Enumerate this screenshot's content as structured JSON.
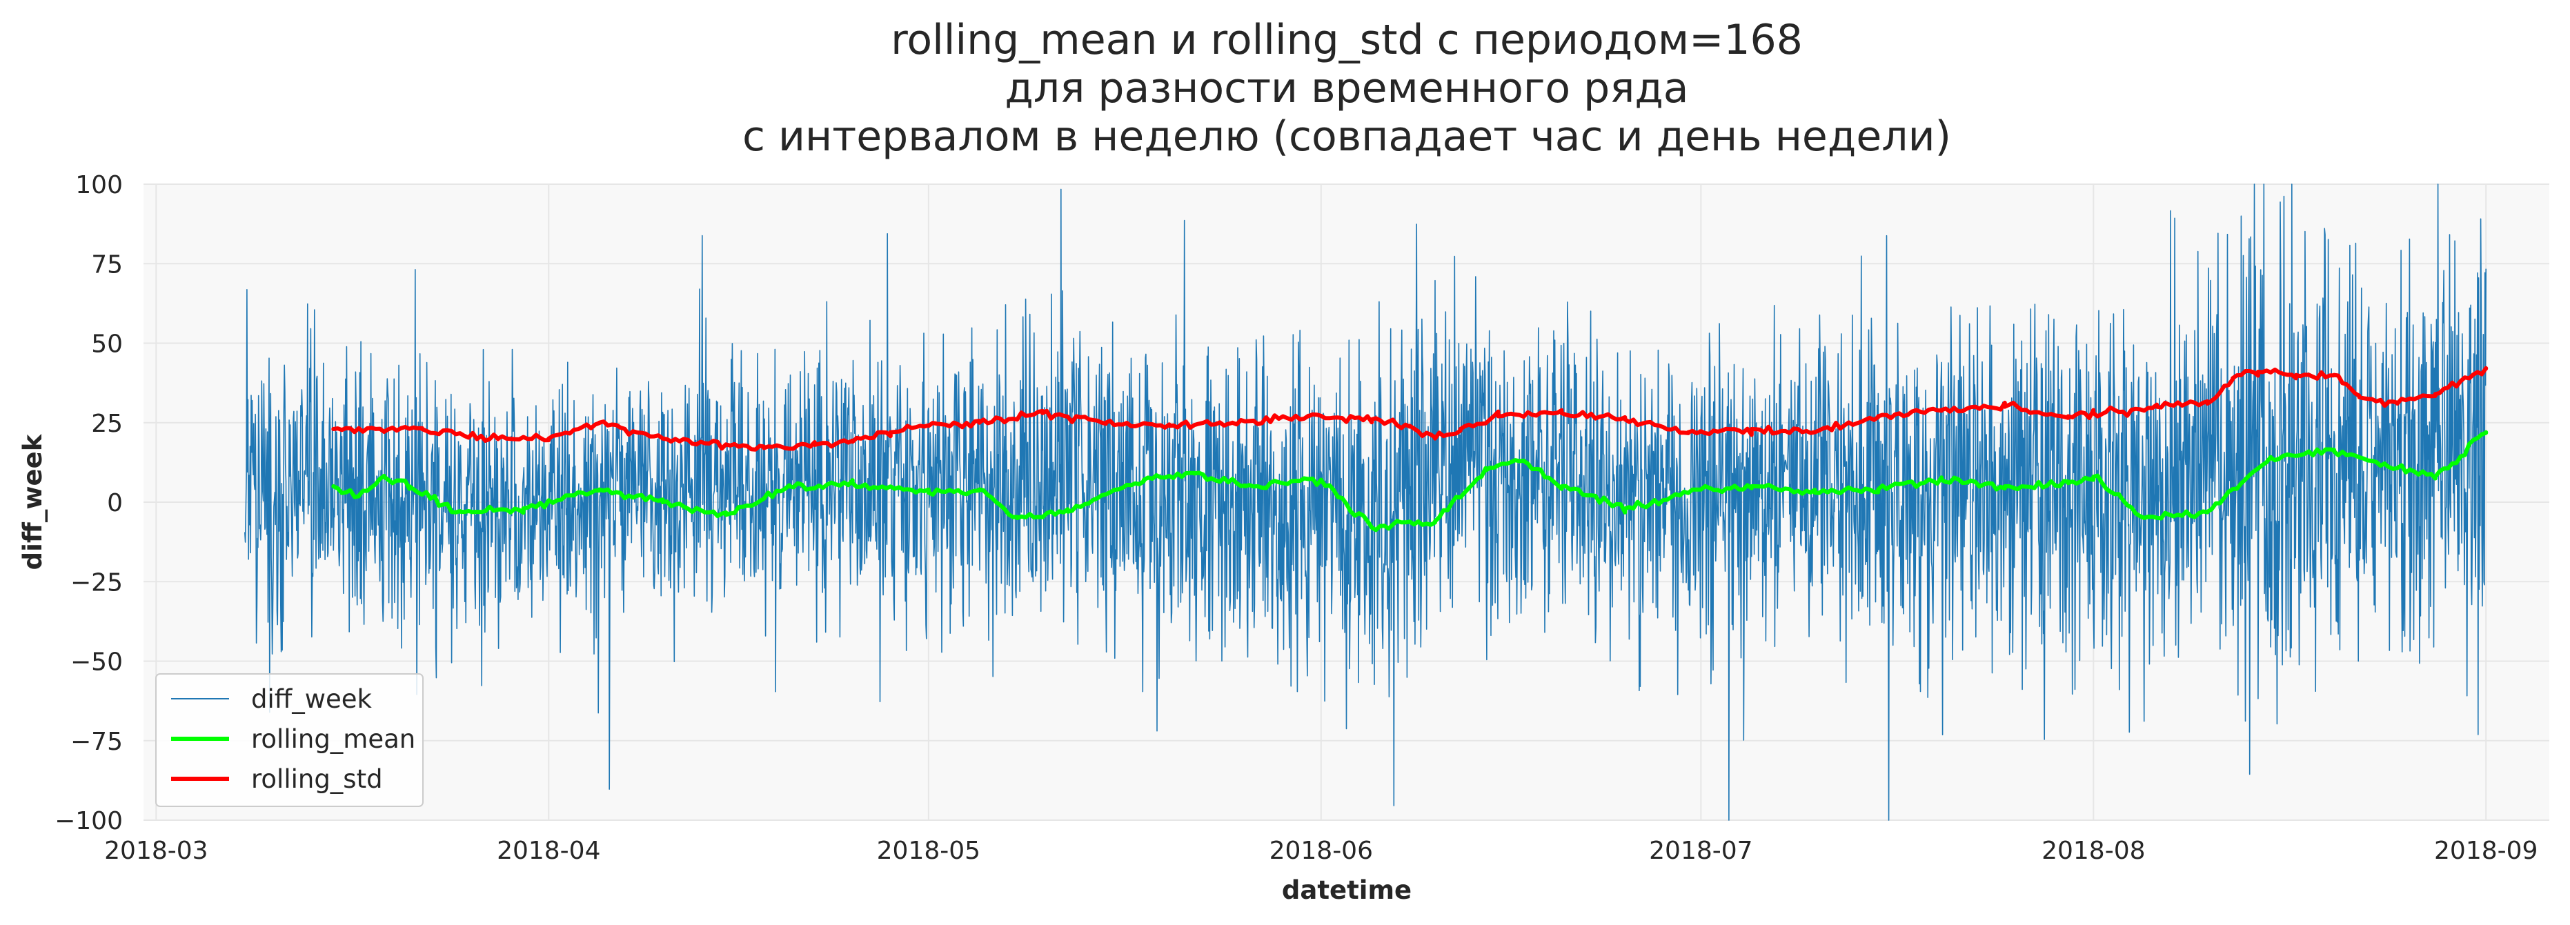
{
  "chart_data": {
    "type": "line",
    "title_lines": [
      "rolling_mean и rolling_std с периодом=168",
      "для разности временного ряда",
      "с интервалом в неделю (совпадает час и день недели)"
    ],
    "xlabel": "datetime",
    "ylabel": "diff_week",
    "xlim": [
      "2018-02-28",
      "2018-09-06"
    ],
    "ylim": [
      -100,
      100
    ],
    "x_ticks": [
      "2018-03-01",
      "2018-04-01",
      "2018-05-01",
      "2018-06-01",
      "2018-07-01",
      "2018-08-01",
      "2018-09-01"
    ],
    "x_tick_labels": [
      "2018-03",
      "2018-04",
      "2018-05",
      "2018-06",
      "2018-07",
      "2018-08",
      "2018-09"
    ],
    "y_ticks": [
      -100,
      -75,
      -50,
      -25,
      0,
      25,
      50,
      75,
      100
    ],
    "y_tick_labels": [
      "−100",
      "−75",
      "−50",
      "−25",
      "0",
      "25",
      "50",
      "75",
      "100"
    ],
    "grid": true,
    "legend": {
      "position": "lower-left",
      "entries": [
        "diff_week",
        "rolling_mean",
        "rolling_std"
      ]
    },
    "series": [
      {
        "name": "diff_week",
        "color": "#1f77b4",
        "kind": "noisy",
        "x_range": [
          "2018-03-08",
          "2018-09-01"
        ],
        "envelope": {
          "x": [
            "2018-03-08",
            "2018-03-15",
            "2018-03-25",
            "2018-04-05",
            "2018-04-20",
            "2018-05-01",
            "2018-05-15",
            "2018-06-01",
            "2018-06-15",
            "2018-07-01",
            "2018-07-15",
            "2018-08-01",
            "2018-08-15",
            "2018-08-25",
            "2018-09-01"
          ],
          "spread": [
            25,
            23,
            21,
            19,
            18,
            25,
            25,
            26,
            27,
            23,
            27,
            28,
            38,
            33,
            42
          ],
          "center": [
            5,
            3,
            -2,
            2,
            5,
            3,
            6,
            -5,
            12,
            4,
            6,
            3,
            15,
            8,
            22
          ]
        }
      },
      {
        "name": "rolling_mean",
        "color": "#00ff00",
        "x": [
          "2018-03-15",
          "2018-03-17",
          "2018-03-19",
          "2018-03-21",
          "2018-03-25",
          "2018-03-30",
          "2018-04-05",
          "2018-04-10",
          "2018-04-15",
          "2018-04-20",
          "2018-04-25",
          "2018-05-01",
          "2018-05-05",
          "2018-05-08",
          "2018-05-12",
          "2018-05-18",
          "2018-05-22",
          "2018-05-26",
          "2018-06-01",
          "2018-06-05",
          "2018-06-10",
          "2018-06-14",
          "2018-06-17",
          "2018-06-20",
          "2018-06-25",
          "2018-07-01",
          "2018-07-05",
          "2018-07-10",
          "2018-07-15",
          "2018-07-20",
          "2018-07-25",
          "2018-07-30",
          "2018-08-01",
          "2018-08-05",
          "2018-08-10",
          "2018-08-15",
          "2018-08-20",
          "2018-08-24",
          "2018-08-28",
          "2018-09-01"
        ],
        "values": [
          5,
          2,
          8,
          5,
          -3,
          -2,
          4,
          0,
          -4,
          5,
          6,
          3,
          4,
          -5,
          -3,
          7,
          9,
          5,
          7,
          -8,
          -6,
          10,
          13,
          5,
          -2,
          4,
          5,
          3,
          4,
          7,
          5,
          6,
          8,
          -5,
          -3,
          14,
          16,
          12,
          8,
          22
        ]
      },
      {
        "name": "rolling_std",
        "color": "#ff0000",
        "x": [
          "2018-03-15",
          "2018-03-22",
          "2018-03-28",
          "2018-04-01",
          "2018-04-05",
          "2018-04-10",
          "2018-04-18",
          "2018-04-22",
          "2018-04-25",
          "2018-04-28",
          "2018-05-01",
          "2018-05-05",
          "2018-05-10",
          "2018-05-15",
          "2018-05-20",
          "2018-05-25",
          "2018-05-31",
          "2018-06-05",
          "2018-06-08",
          "2018-06-10",
          "2018-06-12",
          "2018-06-15",
          "2018-06-20",
          "2018-06-25",
          "2018-06-30",
          "2018-07-05",
          "2018-07-10",
          "2018-07-15",
          "2018-07-20",
          "2018-07-25",
          "2018-07-30",
          "2018-08-01",
          "2018-08-06",
          "2018-08-10",
          "2018-08-12",
          "2018-08-14",
          "2018-08-17",
          "2018-08-20",
          "2018-08-22",
          "2018-08-25",
          "2018-08-28",
          "2018-09-01"
        ],
        "values": [
          23,
          23,
          20,
          20,
          25,
          20,
          17,
          18,
          19,
          22,
          24,
          25,
          28,
          25,
          24,
          25,
          27,
          26,
          24,
          20,
          23,
          27,
          28,
          26,
          22,
          23,
          22,
          27,
          29,
          30,
          27,
          28,
          30,
          31,
          39,
          41,
          40,
          40,
          33,
          31,
          34,
          42
        ]
      }
    ]
  }
}
